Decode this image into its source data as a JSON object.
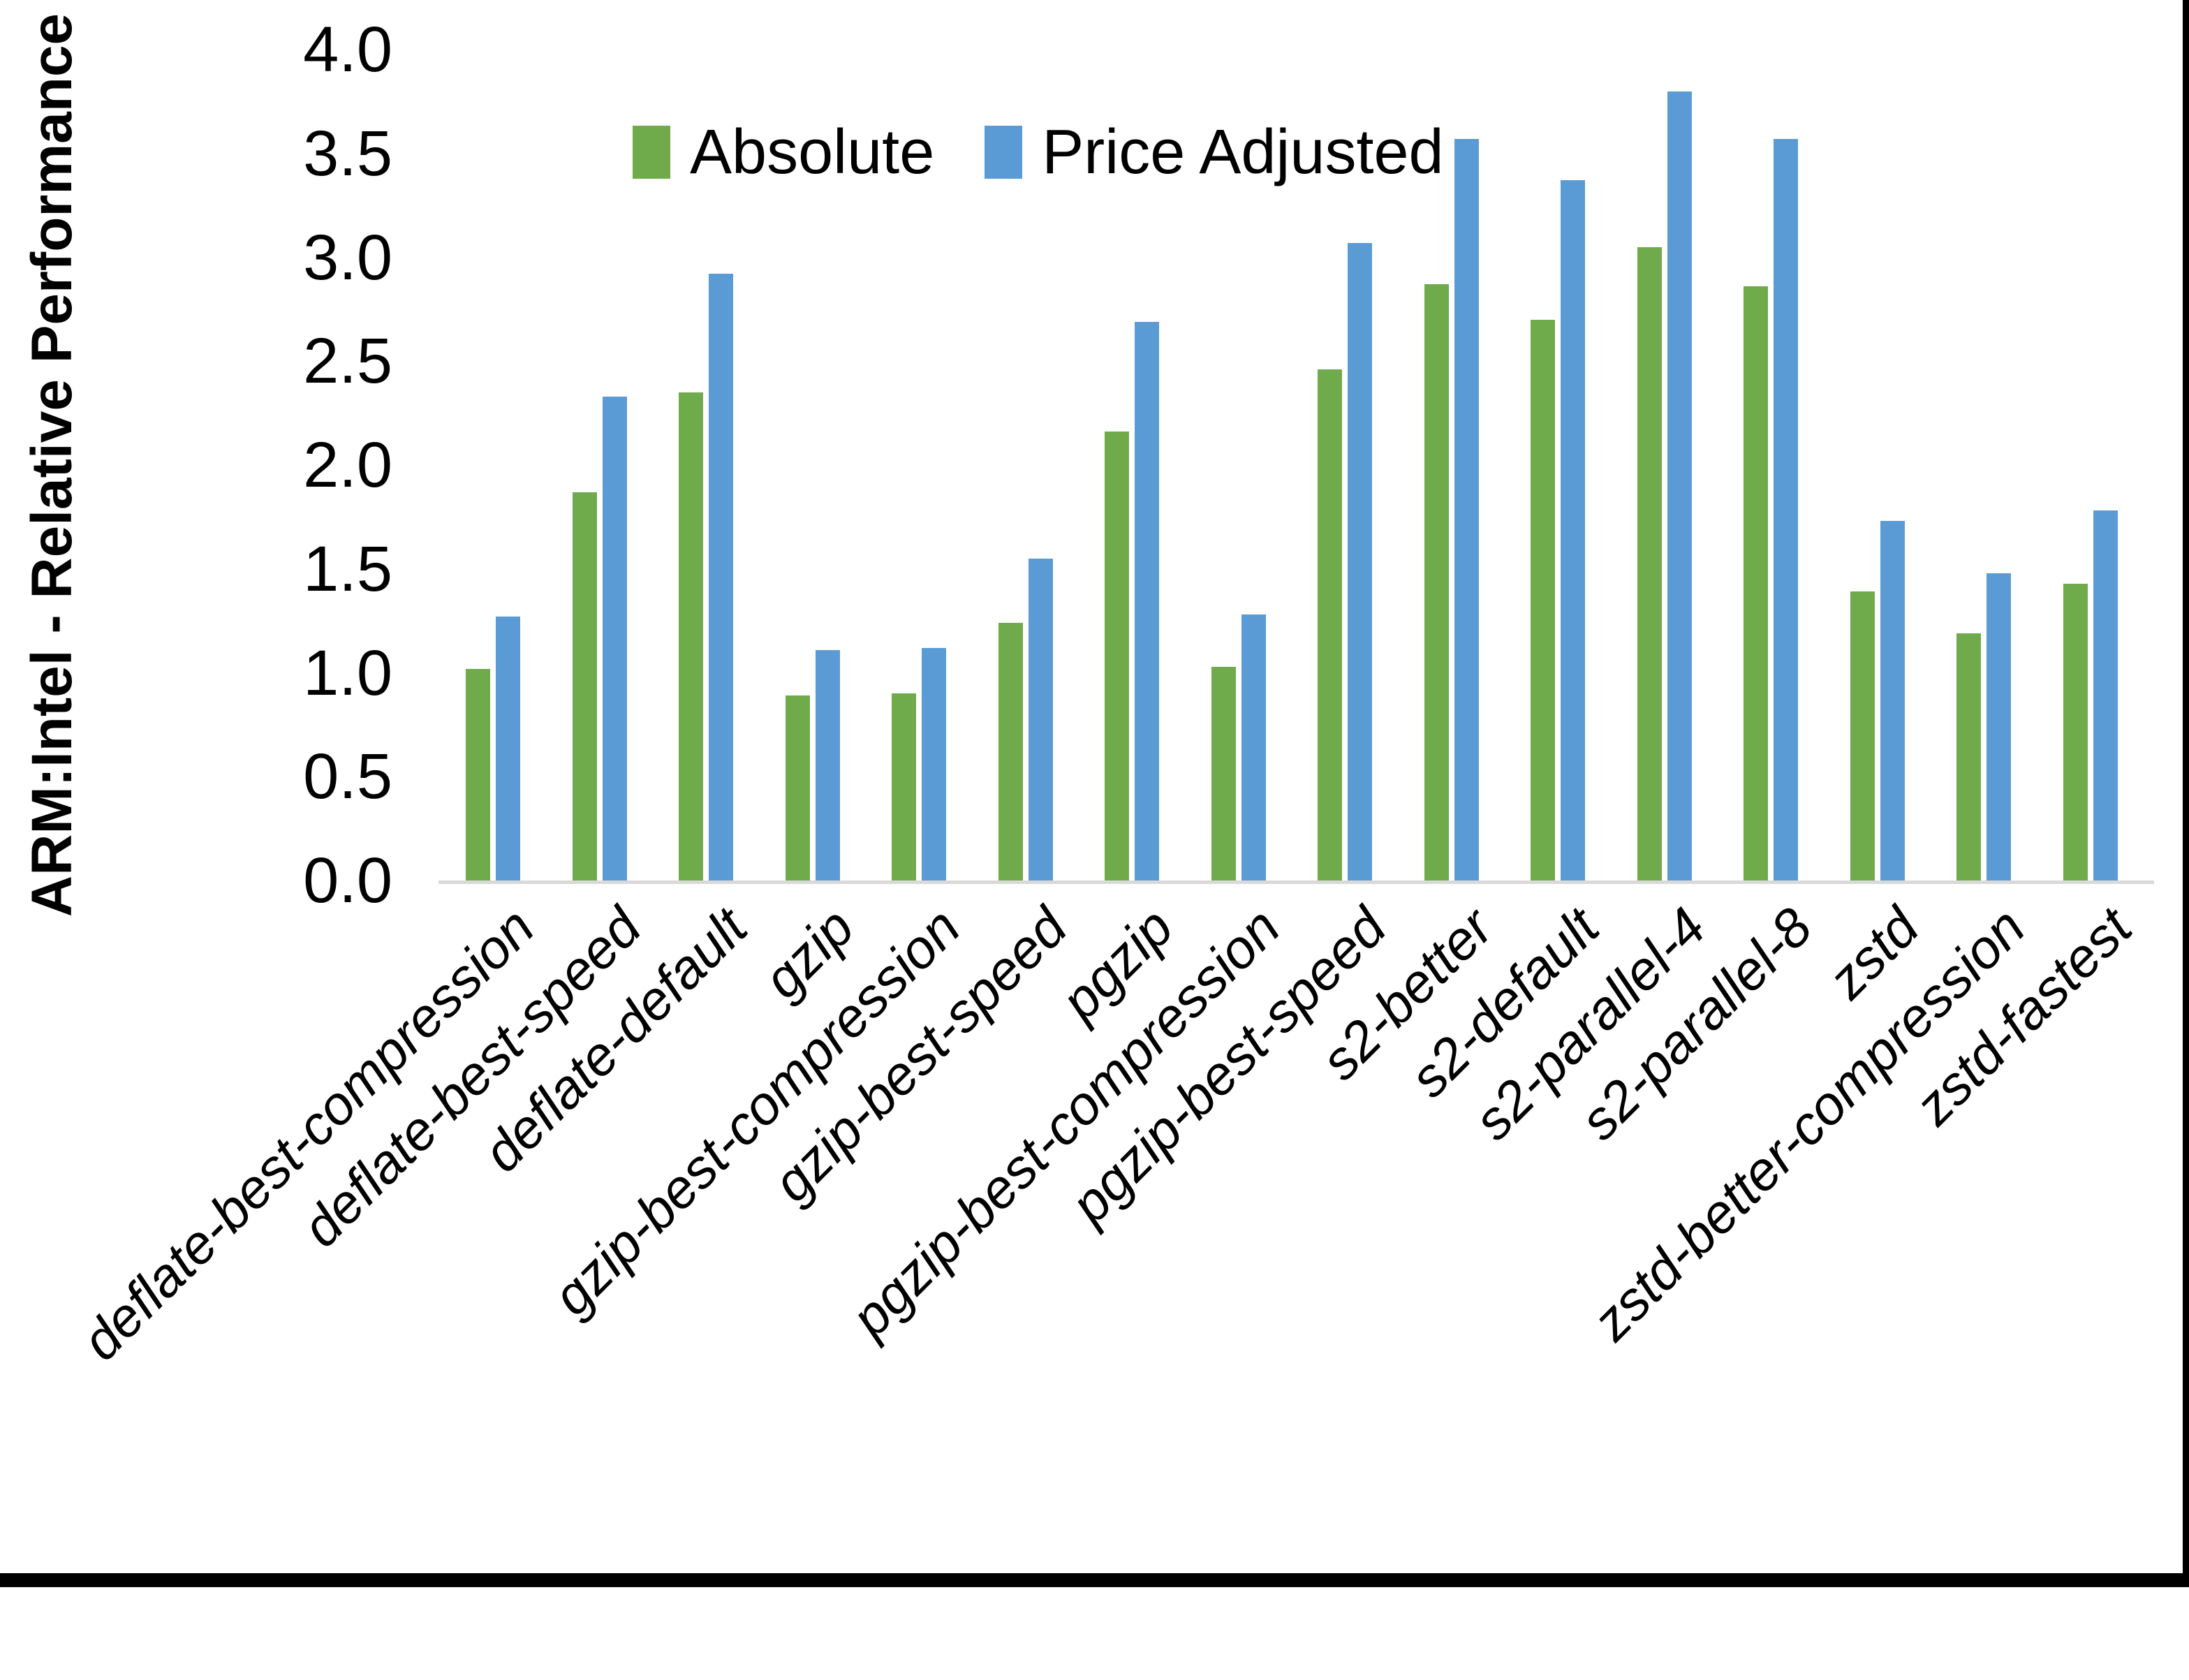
{
  "chart_data": {
    "type": "bar",
    "title": "",
    "ylabel": "ARM:Intel - Relative Performance",
    "xlabel": "",
    "ylim": [
      0.0,
      4.0
    ],
    "ytick_labels": [
      "0.0",
      "0.5",
      "1.0",
      "1.5",
      "2.0",
      "2.5",
      "3.0",
      "3.5",
      "4.0"
    ],
    "grid": false,
    "legend_position": "top-center",
    "axis_line_color": "#D9D9D9",
    "background_color": "#FFFFFF",
    "frame_border_color": "#000000",
    "categories": [
      "deflate-best-compression",
      "deflate-best-speed",
      "deflate-default",
      "gzip",
      "gzip-best-compression",
      "gzip-best-speed",
      "pgzip",
      "pgzip-best-compression",
      "pgzip-best-speed",
      "s2-better",
      "s2-default",
      "s2-parallel-4",
      "s2-parallel-8",
      "zstd",
      "zstd-better-compression",
      "zstd-fastest"
    ],
    "series": [
      {
        "name": "Absolute",
        "color": "#6FAB4B",
        "values": [
          1.02,
          1.87,
          2.35,
          0.89,
          0.9,
          1.24,
          2.16,
          1.03,
          2.46,
          2.87,
          2.7,
          3.05,
          2.86,
          1.39,
          1.19,
          1.43
        ]
      },
      {
        "name": "Price Adjusted",
        "color": "#5B9BD5",
        "values": [
          1.27,
          2.33,
          2.92,
          1.11,
          1.12,
          1.55,
          2.69,
          1.28,
          3.07,
          3.57,
          3.37,
          3.8,
          3.57,
          1.73,
          1.48,
          1.78
        ]
      }
    ]
  }
}
